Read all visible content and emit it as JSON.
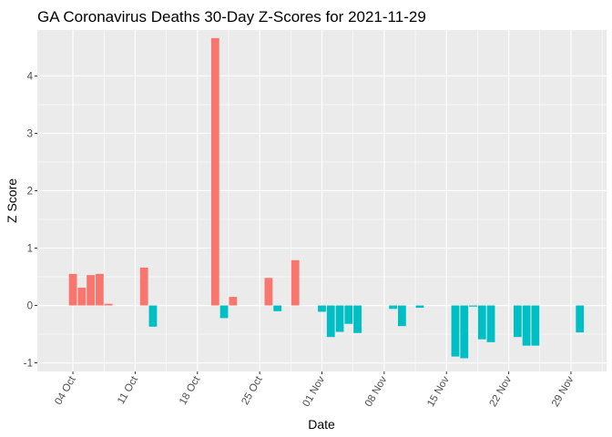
{
  "chart_data": {
    "type": "bar",
    "title": "GA Coronavirus Deaths 30-Day Z-Scores for 2021-11-29",
    "xlabel": "Date",
    "ylabel": "Z Score",
    "xlim": [
      "2021-09-30",
      "2021-12-03"
    ],
    "ylim": [
      -1.15,
      4.8
    ],
    "x_ticks": [
      {
        "date": "2021-10-04",
        "label": "04 Oct"
      },
      {
        "date": "2021-10-11",
        "label": "11 Oct"
      },
      {
        "date": "2021-10-18",
        "label": "18 Oct"
      },
      {
        "date": "2021-10-25",
        "label": "25 Oct"
      },
      {
        "date": "2021-11-01",
        "label": "01 Nov"
      },
      {
        "date": "2021-11-08",
        "label": "08 Nov"
      },
      {
        "date": "2021-11-15",
        "label": "15 Nov"
      },
      {
        "date": "2021-11-22",
        "label": "22 Nov"
      },
      {
        "date": "2021-11-29",
        "label": "29 Nov"
      }
    ],
    "y_ticks": [
      -1,
      0,
      1,
      2,
      3,
      4
    ],
    "colors": {
      "positive": "#F8766D",
      "negative": "#00BFC4"
    },
    "bars": [
      {
        "date": "2021-10-04",
        "value": 0.55
      },
      {
        "date": "2021-10-05",
        "value": 0.31
      },
      {
        "date": "2021-10-06",
        "value": 0.53
      },
      {
        "date": "2021-10-07",
        "value": 0.55
      },
      {
        "date": "2021-10-08",
        "value": 0.03
      },
      {
        "date": "2021-10-12",
        "value": 0.66
      },
      {
        "date": "2021-10-13",
        "value": -0.37
      },
      {
        "date": "2021-10-20",
        "value": 4.66
      },
      {
        "date": "2021-10-21",
        "value": -0.22
      },
      {
        "date": "2021-10-22",
        "value": 0.15
      },
      {
        "date": "2021-10-26",
        "value": 0.48
      },
      {
        "date": "2021-10-27",
        "value": -0.1
      },
      {
        "date": "2021-10-29",
        "value": 0.79
      },
      {
        "date": "2021-11-01",
        "value": -0.11
      },
      {
        "date": "2021-11-02",
        "value": -0.55
      },
      {
        "date": "2021-11-03",
        "value": -0.46
      },
      {
        "date": "2021-11-04",
        "value": -0.32
      },
      {
        "date": "2021-11-05",
        "value": -0.48
      },
      {
        "date": "2021-11-09",
        "value": -0.06
      },
      {
        "date": "2021-11-10",
        "value": -0.36
      },
      {
        "date": "2021-11-12",
        "value": -0.04
      },
      {
        "date": "2021-11-16",
        "value": -0.89
      },
      {
        "date": "2021-11-17",
        "value": -0.92
      },
      {
        "date": "2021-11-18",
        "value": -0.02
      },
      {
        "date": "2021-11-19",
        "value": -0.59
      },
      {
        "date": "2021-11-20",
        "value": -0.64
      },
      {
        "date": "2021-11-23",
        "value": -0.55
      },
      {
        "date": "2021-11-24",
        "value": -0.7
      },
      {
        "date": "2021-11-25",
        "value": -0.7
      },
      {
        "date": "2021-11-30",
        "value": -0.47
      }
    ]
  }
}
